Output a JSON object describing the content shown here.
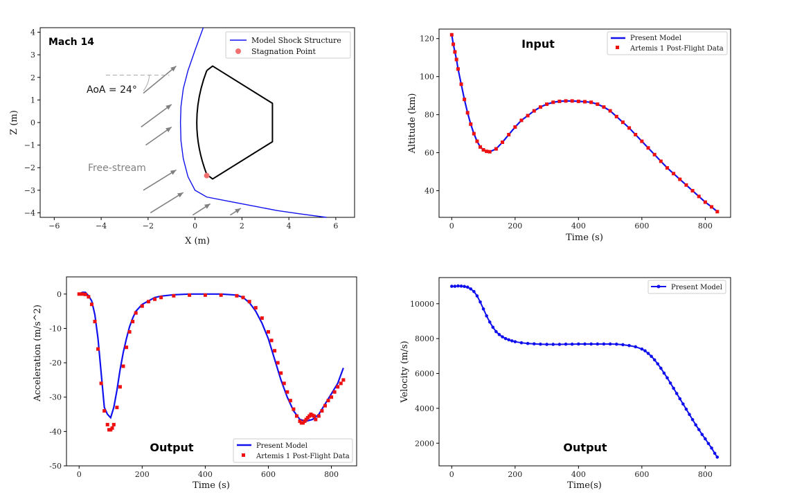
{
  "colors": {
    "model": "#1010ee",
    "data": "#ee1111",
    "stagnation": "#f07070",
    "body": "#000000",
    "arrow": "#808080",
    "annotation": "#808080"
  },
  "chart_data": [
    {
      "id": "shock",
      "type": "line",
      "title": "Mach 14",
      "xlabel": "X (m)",
      "ylabel": "Z (m)",
      "xlim": [
        -6.6,
        6.8
      ],
      "ylim": [
        -4.2,
        4.2
      ],
      "xticks": [
        "−6",
        "−4",
        "−2",
        "0",
        "2",
        "4",
        "6"
      ],
      "yticks": [
        "−4",
        "−3",
        "−2",
        "−1",
        "0",
        "1",
        "2",
        "3",
        "4"
      ],
      "legend": [
        "Model Shock Structure",
        "Stagnation Point"
      ],
      "annotations": {
        "aoa": "AoA = 24°",
        "freestream": "Free-stream"
      },
      "shock_x": [
        0.35,
        0.0,
        -0.3,
        -0.5,
        -0.6,
        -0.62,
        -0.6,
        -0.5,
        -0.3,
        0.0,
        0.5,
        1.5,
        2.5,
        3.5,
        4.5,
        5.6
      ],
      "shock_z": [
        4.2,
        3.2,
        2.3,
        1.5,
        0.7,
        0.0,
        -0.8,
        -1.6,
        -2.4,
        -3.0,
        -3.3,
        -3.5,
        -3.7,
        -3.9,
        -4.05,
        -4.2
      ],
      "body_x": [
        0.5,
        0.75,
        3.3,
        3.3,
        0.75,
        0.5
      ],
      "body_z": [
        2.3,
        2.5,
        0.85,
        -0.85,
        -2.5,
        -2.3
      ],
      "stagnation": [
        0.5,
        -2.35
      ]
    },
    {
      "id": "altitude",
      "type": "line",
      "title": "Input",
      "xlabel": "Time (s)",
      "ylabel": "Altitude (km)",
      "xlim": [
        -40,
        880
      ],
      "ylim": [
        26,
        125
      ],
      "xticks": [
        0,
        200,
        400,
        600,
        800
      ],
      "yticks": [
        40,
        60,
        80,
        100,
        120
      ],
      "legend": [
        "Present Model",
        "Artemis 1 Post-Flight Data"
      ],
      "series": [
        {
          "name": "Present Model",
          "t": [
            0,
            5,
            10,
            15,
            20,
            30,
            40,
            50,
            60,
            70,
            80,
            90,
            100,
            110,
            120,
            140,
            160,
            180,
            200,
            220,
            240,
            260,
            280,
            300,
            320,
            340,
            360,
            380,
            400,
            420,
            440,
            460,
            480,
            500,
            520,
            540,
            560,
            580,
            600,
            620,
            640,
            660,
            680,
            700,
            720,
            740,
            760,
            780,
            800,
            820,
            838
          ],
          "alt": [
            122,
            117,
            113,
            109,
            104,
            96,
            88,
            81,
            75,
            70,
            66,
            63,
            61.5,
            60.7,
            60.5,
            62,
            65.5,
            69.5,
            73.5,
            77,
            79.5,
            82,
            84,
            85.5,
            86.5,
            87,
            87.2,
            87.2,
            87,
            86.8,
            86.5,
            85.5,
            84,
            82,
            79,
            76,
            73,
            69.5,
            66,
            62.5,
            59,
            55.5,
            52,
            49,
            46,
            43,
            40,
            37,
            34,
            31.5,
            29
          ]
        },
        {
          "name": "Artemis 1 Post-Flight Data",
          "t": [
            0,
            5,
            10,
            15,
            20,
            30,
            40,
            50,
            60,
            70,
            80,
            90,
            100,
            110,
            120,
            140,
            160,
            180,
            200,
            220,
            240,
            260,
            280,
            300,
            320,
            340,
            360,
            380,
            400,
            420,
            440,
            460,
            480,
            500,
            520,
            540,
            560,
            580,
            600,
            620,
            640,
            660,
            680,
            700,
            720,
            740,
            760,
            780,
            800,
            820,
            838
          ],
          "alt": [
            122,
            117,
            113,
            109,
            104,
            96,
            88,
            81,
            75,
            70,
            66,
            63,
            61.5,
            60.7,
            60.5,
            62,
            65.5,
            69.5,
            73.5,
            77,
            79.5,
            82,
            84,
            85.5,
            86.5,
            87,
            87.2,
            87.2,
            87,
            86.8,
            86.5,
            85.5,
            84,
            82,
            79,
            76,
            73,
            69.5,
            66,
            62.5,
            59,
            55.5,
            52,
            49,
            46,
            43,
            40,
            37,
            34,
            31.5,
            29
          ]
        }
      ]
    },
    {
      "id": "accel",
      "type": "line",
      "title": "Output",
      "xlabel": "Time (s)",
      "ylabel": "Acceleration (m/s^2)",
      "xlim": [
        -40,
        880
      ],
      "ylim": [
        -50,
        5
      ],
      "xticks": [
        0,
        200,
        400,
        600,
        800
      ],
      "yticks": [
        0,
        -10,
        -20,
        -30,
        -40,
        -50
      ],
      "legend": [
        "Present Model",
        "Artemis 1 Post-Flight Data"
      ],
      "series": [
        {
          "name": "Present Model",
          "t": [
            0,
            10,
            20,
            30,
            40,
            50,
            60,
            70,
            80,
            90,
            100,
            110,
            120,
            130,
            140,
            150,
            160,
            170,
            180,
            200,
            220,
            240,
            260,
            300,
            350,
            400,
            450,
            500,
            520,
            540,
            560,
            580,
            600,
            620,
            640,
            660,
            680,
            700,
            720,
            740,
            760,
            780,
            800,
            820,
            838
          ],
          "acc": [
            0,
            0.5,
            0.5,
            -0.5,
            -2,
            -6,
            -13,
            -23,
            -33,
            -35,
            -36,
            -33,
            -28,
            -22,
            -17,
            -13,
            -9.5,
            -7,
            -5,
            -3,
            -2,
            -1,
            -0.6,
            -0.2,
            0,
            0,
            0,
            -0.3,
            -1,
            -2.5,
            -5,
            -8.5,
            -13,
            -19,
            -25,
            -30,
            -34,
            -36.5,
            -37,
            -36.5,
            -35,
            -32,
            -29,
            -26,
            -21.5
          ]
        },
        {
          "name": "Artemis 1 Post-Flight Data",
          "t": [
            0,
            10,
            20,
            30,
            40,
            50,
            60,
            70,
            80,
            90,
            95,
            100,
            105,
            110,
            120,
            130,
            140,
            150,
            160,
            170,
            180,
            200,
            220,
            240,
            260,
            300,
            350,
            400,
            450,
            500,
            520,
            540,
            560,
            580,
            600,
            610,
            620,
            630,
            640,
            650,
            660,
            670,
            680,
            690,
            700,
            705,
            710,
            715,
            720,
            725,
            730,
            735,
            740,
            745,
            750,
            760,
            770,
            780,
            790,
            800,
            810,
            820,
            830,
            838
          ],
          "acc": [
            0,
            0,
            -0.1,
            -0.8,
            -3,
            -8,
            -16,
            -26,
            -34,
            -38,
            -39.5,
            -39.5,
            -39,
            -38,
            -33,
            -27,
            -21,
            -15.5,
            -11,
            -8,
            -5.5,
            -3.5,
            -2.2,
            -1.5,
            -1,
            -0.5,
            -0.3,
            -0.3,
            -0.3,
            -0.5,
            -1,
            -2.2,
            -4,
            -7,
            -11,
            -13.5,
            -16.5,
            -20,
            -23,
            -26,
            -28.5,
            -31,
            -33.5,
            -35.5,
            -37,
            -37.5,
            -37.5,
            -37,
            -36.5,
            -36,
            -35.5,
            -35,
            -35.3,
            -35.5,
            -36.5,
            -35.5,
            -34,
            -32.5,
            -31,
            -30,
            -28.5,
            -27,
            -26,
            -25
          ]
        }
      ]
    },
    {
      "id": "velocity",
      "type": "line",
      "title": "Output",
      "xlabel": "Time(s)",
      "ylabel": "Velocity (m/s)",
      "xlim": [
        -40,
        880
      ],
      "ylim": [
        700,
        11500
      ],
      "xticks": [
        0,
        200,
        400,
        600,
        800
      ],
      "yticks": [
        2000,
        4000,
        6000,
        8000,
        10000
      ],
      "legend": [
        "Present Model"
      ],
      "series": [
        {
          "name": "Present Model",
          "t": [
            0,
            10,
            20,
            30,
            40,
            50,
            60,
            70,
            80,
            90,
            100,
            110,
            120,
            130,
            140,
            150,
            160,
            170,
            180,
            190,
            200,
            220,
            240,
            260,
            280,
            300,
            320,
            340,
            360,
            380,
            400,
            420,
            440,
            460,
            480,
            500,
            520,
            540,
            560,
            580,
            600,
            610,
            620,
            630,
            640,
            650,
            660,
            670,
            680,
            690,
            700,
            710,
            720,
            730,
            740,
            750,
            760,
            770,
            780,
            790,
            800,
            810,
            820,
            830,
            838
          ],
          "vel": [
            11000,
            11000,
            11020,
            11010,
            10990,
            10950,
            10850,
            10700,
            10450,
            10100,
            9700,
            9300,
            8950,
            8650,
            8400,
            8230,
            8100,
            8000,
            7930,
            7870,
            7820,
            7760,
            7720,
            7700,
            7680,
            7670,
            7670,
            7670,
            7680,
            7680,
            7690,
            7690,
            7690,
            7690,
            7690,
            7690,
            7680,
            7650,
            7600,
            7530,
            7400,
            7300,
            7150,
            6980,
            6780,
            6550,
            6300,
            6020,
            5750,
            5450,
            5150,
            4850,
            4550,
            4250,
            3950,
            3650,
            3350,
            3050,
            2780,
            2500,
            2250,
            1980,
            1720,
            1420,
            1200
          ]
        }
      ]
    }
  ]
}
